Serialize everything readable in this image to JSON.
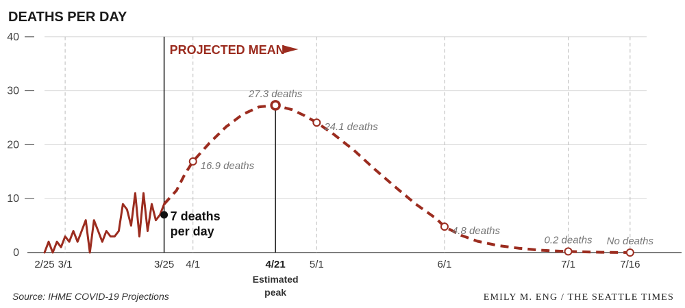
{
  "chart_data": {
    "type": "line",
    "title": "DEATHS PER DAY",
    "ylim": [
      0,
      40
    ],
    "yticks": [
      0,
      10,
      20,
      30,
      40
    ],
    "grid": "horizontal solid gridlines, vertical dashed date lines",
    "x_ticks": [
      {
        "label": "2/25",
        "day": 0
      },
      {
        "label": "3/1",
        "day": 5
      },
      {
        "label": "3/25",
        "day": 29
      },
      {
        "label": "4/1",
        "day": 36
      },
      {
        "label": "4/21",
        "day": 56,
        "emphasis": true
      },
      {
        "label": "5/1",
        "day": 66
      },
      {
        "label": "6/1",
        "day": 97
      },
      {
        "label": "7/1",
        "day": 127
      },
      {
        "label": "7/16",
        "day": 142
      }
    ],
    "series": [
      {
        "style": "solid",
        "color": "#9b2c1f",
        "points": [
          [
            0,
            0
          ],
          [
            1,
            2
          ],
          [
            2,
            0
          ],
          [
            3,
            2
          ],
          [
            4,
            1
          ],
          [
            5,
            3
          ],
          [
            6,
            2
          ],
          [
            7,
            4
          ],
          [
            8,
            2
          ],
          [
            9,
            4
          ],
          [
            10,
            6
          ],
          [
            11,
            0
          ],
          [
            12,
            6
          ],
          [
            13,
            4
          ],
          [
            14,
            2
          ],
          [
            15,
            4
          ],
          [
            16,
            3
          ],
          [
            17,
            3
          ],
          [
            18,
            4
          ],
          [
            19,
            9
          ],
          [
            20,
            8
          ],
          [
            21,
            5
          ],
          [
            22,
            11
          ],
          [
            23,
            3
          ],
          [
            24,
            11
          ],
          [
            25,
            4
          ],
          [
            26,
            9
          ],
          [
            27,
            6
          ],
          [
            28,
            7
          ],
          [
            29,
            9
          ]
        ]
      },
      {
        "style": "dashed",
        "color": "#9b2c1f",
        "points": [
          [
            29,
            9
          ],
          [
            32,
            11.5
          ],
          [
            34,
            14.5
          ],
          [
            36,
            16.9
          ],
          [
            40,
            20.3
          ],
          [
            44,
            23.3
          ],
          [
            48,
            25.6
          ],
          [
            52,
            27
          ],
          [
            56,
            27.3
          ],
          [
            60,
            26.5
          ],
          [
            63,
            25.4
          ],
          [
            66,
            24.1
          ],
          [
            70,
            22
          ],
          [
            75,
            19
          ],
          [
            80,
            15.5
          ],
          [
            85,
            12.2
          ],
          [
            90,
            9
          ],
          [
            95,
            6.3
          ],
          [
            97,
            4.8
          ],
          [
            101,
            3.2
          ],
          [
            105,
            2.1
          ],
          [
            110,
            1.3
          ],
          [
            115,
            0.8
          ],
          [
            120,
            0.45
          ],
          [
            125,
            0.25
          ],
          [
            127,
            0.2
          ],
          [
            135,
            0.05
          ],
          [
            142,
            0
          ]
        ]
      }
    ],
    "labels": {
      "projected": "PROJECTED MEAN",
      "now_line1": "7 deaths",
      "now_line2": "per day",
      "peak_note_line1": "Estimated",
      "peak_note_line2": "peak"
    },
    "now_marker": {
      "day": 29,
      "value": 7
    },
    "callouts": [
      {
        "day": 36,
        "value": 16.9,
        "text": "16.9 deaths",
        "anchor": "right"
      },
      {
        "day": 56,
        "value": 27.3,
        "text": "27.3 deaths",
        "anchor": "above",
        "emphasis": true
      },
      {
        "day": 66,
        "value": 24.1,
        "text": "24.1 deaths",
        "anchor": "right"
      },
      {
        "day": 97,
        "value": 4.8,
        "text": "4.8 deaths",
        "anchor": "right"
      },
      {
        "day": 127,
        "value": 0.2,
        "text": "0.2 deaths",
        "anchor": "above"
      },
      {
        "day": 142,
        "value": 0,
        "text": "No deaths",
        "anchor": "above"
      }
    ],
    "source": "Source: IHME COVID-19 Projections",
    "credit": "EMILY M. ENG / THE SEATTLE TIMES"
  }
}
